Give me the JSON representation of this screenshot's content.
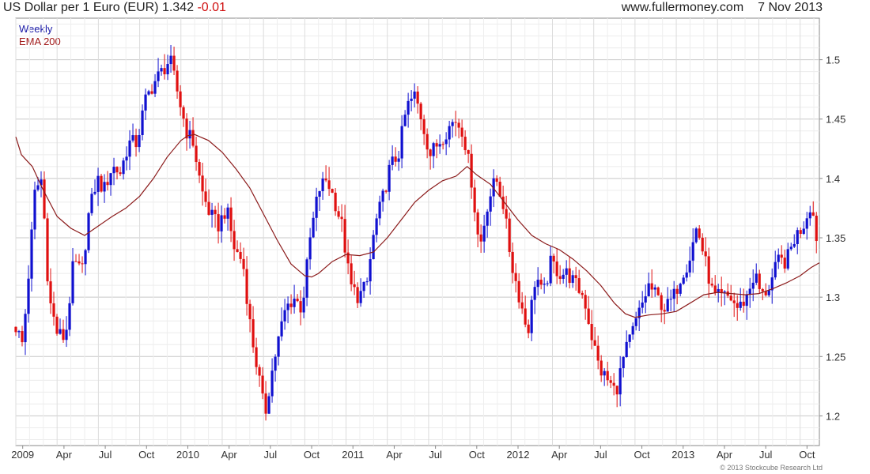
{
  "header": {
    "title": "US Dollar per 1 Euro (EUR)",
    "last": "1.342",
    "change": "-0.01",
    "site": "www.fullermoney.com",
    "date": "7 Nov 2013"
  },
  "legend": {
    "weekly": "Weekly",
    "ema": "EMA 200"
  },
  "copyright": "© 2013 Stockcube Research Ltd",
  "chart_data": {
    "type": "candlestick",
    "frequency": "weekly",
    "ylim": [
      1.175,
      1.535
    ],
    "xlim_months": [
      0,
      58.4
    ],
    "y_ticks": [
      "1.2",
      "1.25",
      "1.3",
      "1.35",
      "1.4",
      "1.45",
      "1.5"
    ],
    "x_ticks": [
      {
        "label": "2009",
        "m": 0.5
      },
      {
        "label": "Apr",
        "m": 3.5
      },
      {
        "label": "Jul",
        "m": 6.5
      },
      {
        "label": "Oct",
        "m": 9.5
      },
      {
        "label": "2010",
        "m": 12.5
      },
      {
        "label": "Apr",
        "m": 15.5
      },
      {
        "label": "Jul",
        "m": 18.5
      },
      {
        "label": "Oct",
        "m": 21.5
      },
      {
        "label": "2011",
        "m": 24.5
      },
      {
        "label": "Apr",
        "m": 27.5
      },
      {
        "label": "Jul",
        "m": 30.5
      },
      {
        "label": "Oct",
        "m": 33.5
      },
      {
        "label": "2012",
        "m": 36.5
      },
      {
        "label": "Apr",
        "m": 39.5
      },
      {
        "label": "Jul",
        "m": 42.5
      },
      {
        "label": "Oct",
        "m": 45.5
      },
      {
        "label": "2013",
        "m": 48.5
      },
      {
        "label": "Apr",
        "m": 51.5
      },
      {
        "label": "Jul",
        "m": 54.5
      },
      {
        "label": "Oct",
        "m": 57.5
      }
    ],
    "close_path": [
      [
        0.0,
        1.275
      ],
      [
        0.5,
        1.26
      ],
      [
        1.0,
        1.33
      ],
      [
        1.4,
        1.39
      ],
      [
        1.9,
        1.4
      ],
      [
        2.4,
        1.3
      ],
      [
        3.0,
        1.27
      ],
      [
        3.6,
        1.265
      ],
      [
        4.2,
        1.33
      ],
      [
        4.8,
        1.32
      ],
      [
        5.3,
        1.37
      ],
      [
        5.9,
        1.4
      ],
      [
        6.4,
        1.39
      ],
      [
        7.0,
        1.41
      ],
      [
        7.6,
        1.405
      ],
      [
        8.2,
        1.43
      ],
      [
        8.8,
        1.43
      ],
      [
        9.4,
        1.465
      ],
      [
        10.0,
        1.48
      ],
      [
        10.6,
        1.49
      ],
      [
        11.2,
        1.5
      ],
      [
        11.8,
        1.47
      ],
      [
        12.4,
        1.44
      ],
      [
        12.9,
        1.43
      ],
      [
        13.5,
        1.39
      ],
      [
        14.1,
        1.37
      ],
      [
        14.7,
        1.36
      ],
      [
        15.3,
        1.375
      ],
      [
        15.9,
        1.34
      ],
      [
        16.5,
        1.33
      ],
      [
        17.1,
        1.27
      ],
      [
        17.7,
        1.23
      ],
      [
        18.1,
        1.2
      ],
      [
        18.5,
        1.23
      ],
      [
        19.0,
        1.26
      ],
      [
        19.6,
        1.29
      ],
      [
        20.2,
        1.3
      ],
      [
        20.8,
        1.29
      ],
      [
        21.4,
        1.35
      ],
      [
        22.0,
        1.39
      ],
      [
        22.6,
        1.4
      ],
      [
        23.2,
        1.38
      ],
      [
        23.7,
        1.36
      ],
      [
        24.3,
        1.31
      ],
      [
        24.9,
        1.3
      ],
      [
        25.5,
        1.31
      ],
      [
        26.1,
        1.36
      ],
      [
        26.6,
        1.38
      ],
      [
        27.2,
        1.41
      ],
      [
        27.8,
        1.42
      ],
      [
        28.4,
        1.46
      ],
      [
        29.0,
        1.47
      ],
      [
        29.5,
        1.45
      ],
      [
        30.1,
        1.42
      ],
      [
        30.7,
        1.43
      ],
      [
        31.3,
        1.44
      ],
      [
        31.9,
        1.45
      ],
      [
        32.5,
        1.44
      ],
      [
        33.1,
        1.4
      ],
      [
        33.7,
        1.34
      ],
      [
        34.3,
        1.38
      ],
      [
        34.9,
        1.4
      ],
      [
        35.4,
        1.38
      ],
      [
        36.0,
        1.33
      ],
      [
        36.6,
        1.3
      ],
      [
        37.2,
        1.27
      ],
      [
        37.8,
        1.32
      ],
      [
        38.3,
        1.3
      ],
      [
        38.9,
        1.33
      ],
      [
        39.5,
        1.32
      ],
      [
        40.1,
        1.32
      ],
      [
        40.7,
        1.31
      ],
      [
        41.3,
        1.3
      ],
      [
        41.8,
        1.27
      ],
      [
        42.4,
        1.24
      ],
      [
        43.0,
        1.23
      ],
      [
        43.6,
        1.22
      ],
      [
        44.2,
        1.25
      ],
      [
        44.8,
        1.27
      ],
      [
        45.4,
        1.29
      ],
      [
        46.0,
        1.31
      ],
      [
        46.6,
        1.3
      ],
      [
        47.2,
        1.29
      ],
      [
        47.8,
        1.3
      ],
      [
        48.4,
        1.32
      ],
      [
        48.9,
        1.33
      ],
      [
        49.5,
        1.36
      ],
      [
        50.1,
        1.33
      ],
      [
        50.7,
        1.3
      ],
      [
        51.3,
        1.3
      ],
      [
        51.9,
        1.3
      ],
      [
        52.5,
        1.29
      ],
      [
        53.1,
        1.3
      ],
      [
        53.7,
        1.32
      ],
      [
        54.2,
        1.3
      ],
      [
        54.8,
        1.31
      ],
      [
        55.4,
        1.33
      ],
      [
        56.0,
        1.33
      ],
      [
        56.6,
        1.35
      ],
      [
        57.2,
        1.36
      ],
      [
        57.8,
        1.38
      ],
      [
        58.2,
        1.35
      ],
      [
        58.4,
        1.342
      ]
    ],
    "ema_200": [
      [
        0.0,
        1.435
      ],
      [
        0.4,
        1.42
      ],
      [
        0.8,
        1.415
      ],
      [
        1.2,
        1.41
      ],
      [
        1.6,
        1.4
      ],
      [
        2.0,
        1.39
      ],
      [
        3.0,
        1.368
      ],
      [
        3.6,
        1.362
      ],
      [
        4.0,
        1.358
      ],
      [
        5.0,
        1.352
      ],
      [
        6.0,
        1.36
      ],
      [
        7.0,
        1.368
      ],
      [
        8.0,
        1.375
      ],
      [
        9.0,
        1.385
      ],
      [
        10.0,
        1.4
      ],
      [
        11.0,
        1.418
      ],
      [
        12.0,
        1.432
      ],
      [
        12.5,
        1.436
      ],
      [
        13.0,
        1.437
      ],
      [
        14.0,
        1.432
      ],
      [
        15.0,
        1.422
      ],
      [
        16.0,
        1.408
      ],
      [
        17.0,
        1.392
      ],
      [
        18.0,
        1.37
      ],
      [
        19.0,
        1.348
      ],
      [
        20.0,
        1.328
      ],
      [
        21.0,
        1.318
      ],
      [
        21.5,
        1.317
      ],
      [
        22.0,
        1.32
      ],
      [
        23.0,
        1.33
      ],
      [
        24.0,
        1.336
      ],
      [
        25.0,
        1.335
      ],
      [
        26.0,
        1.338
      ],
      [
        27.0,
        1.35
      ],
      [
        28.0,
        1.365
      ],
      [
        29.0,
        1.38
      ],
      [
        30.0,
        1.39
      ],
      [
        31.0,
        1.398
      ],
      [
        32.0,
        1.402
      ],
      [
        32.8,
        1.41
      ],
      [
        33.5,
        1.403
      ],
      [
        34.5,
        1.395
      ],
      [
        35.5,
        1.38
      ],
      [
        36.5,
        1.365
      ],
      [
        37.5,
        1.352
      ],
      [
        38.5,
        1.345
      ],
      [
        39.5,
        1.34
      ],
      [
        40.5,
        1.332
      ],
      [
        41.5,
        1.322
      ],
      [
        42.5,
        1.31
      ],
      [
        43.5,
        1.295
      ],
      [
        44.3,
        1.286
      ],
      [
        45.0,
        1.283
      ],
      [
        46.0,
        1.285
      ],
      [
        47.0,
        1.286
      ],
      [
        48.0,
        1.288
      ],
      [
        49.0,
        1.295
      ],
      [
        50.0,
        1.302
      ],
      [
        51.0,
        1.304
      ],
      [
        52.0,
        1.303
      ],
      [
        53.0,
        1.302
      ],
      [
        54.0,
        1.303
      ],
      [
        55.0,
        1.307
      ],
      [
        56.0,
        1.312
      ],
      [
        57.0,
        1.318
      ],
      [
        57.8,
        1.325
      ],
      [
        58.4,
        1.329
      ]
    ]
  },
  "colors": {
    "up_bar": "#1010d0",
    "down_bar": "#e01010",
    "ema_line": "#8b1a1a",
    "grid": "#d8d8d8",
    "frame": "#888888"
  }
}
